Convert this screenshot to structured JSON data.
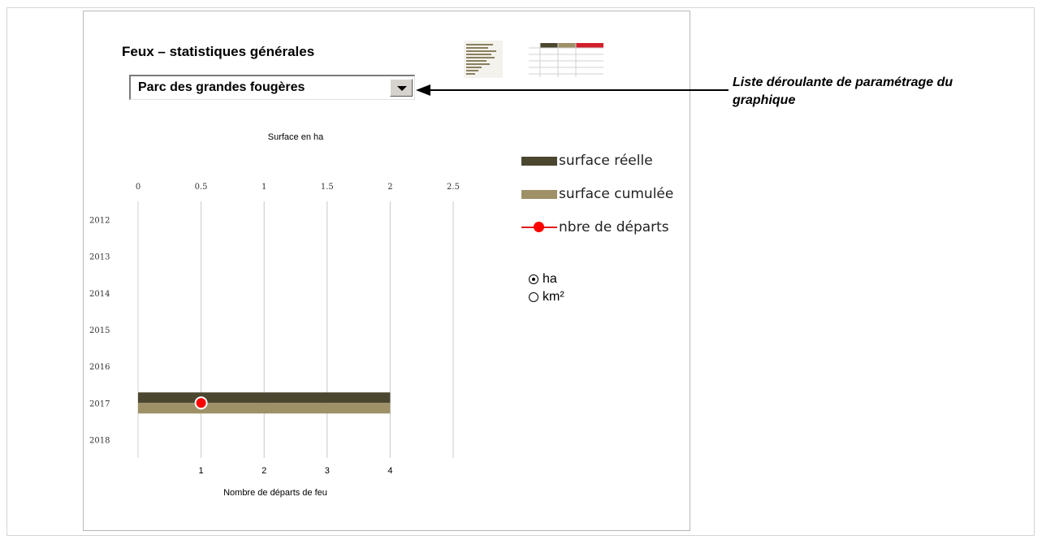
{
  "title": "Feux – statistiques générales",
  "dropdown": {
    "value": "Parc des grandes fougères"
  },
  "annotation": "Liste déroulante de paramétrage du graphique",
  "legend": {
    "items": [
      {
        "label": "surface réelle",
        "color": "#4a4630",
        "kind": "bar"
      },
      {
        "label": "surface cumulée",
        "color": "#9e9168",
        "kind": "bar"
      },
      {
        "label": "nbre de départs",
        "color": "#ff0000",
        "kind": "line-marker"
      }
    ]
  },
  "units": {
    "options": [
      {
        "label": "ha",
        "selected": true
      },
      {
        "label": "km²",
        "selected": false
      }
    ]
  },
  "colors": {
    "grid": "#c8c8c8",
    "point_fill": "#ff0000",
    "point_stroke": "#ffffff"
  },
  "chart_data": {
    "type": "bar",
    "orientation": "horizontal",
    "title": "",
    "categories": [
      "2012",
      "2013",
      "2014",
      "2015",
      "2016",
      "2017",
      "2018"
    ],
    "x_top_label": "Surface en ha",
    "x_top_ticks": [
      "0",
      "0.5",
      "1",
      "1.5",
      "2",
      "2.5"
    ],
    "x_top_lim": [
      0,
      2.5
    ],
    "x_bottom_label": "Nombre de départs de feu",
    "x_bottom_ticks": [
      "1",
      "2",
      "3",
      "4"
    ],
    "x_bottom_lim": [
      0,
      5
    ],
    "series": [
      {
        "name": "surface réelle",
        "axis": "top",
        "color": "#4a4630",
        "values": [
          0,
          0,
          0,
          0,
          0,
          2,
          0
        ]
      },
      {
        "name": "surface cumulée",
        "axis": "top",
        "color": "#9e9168",
        "values": [
          0,
          0,
          0,
          0,
          0,
          2,
          0
        ]
      },
      {
        "name": "nbre de départs",
        "axis": "bottom",
        "color": "#ff0000",
        "type": "scatter",
        "values": [
          null,
          null,
          null,
          null,
          null,
          1,
          null
        ]
      }
    ],
    "grid": true,
    "legend_position": "right"
  }
}
